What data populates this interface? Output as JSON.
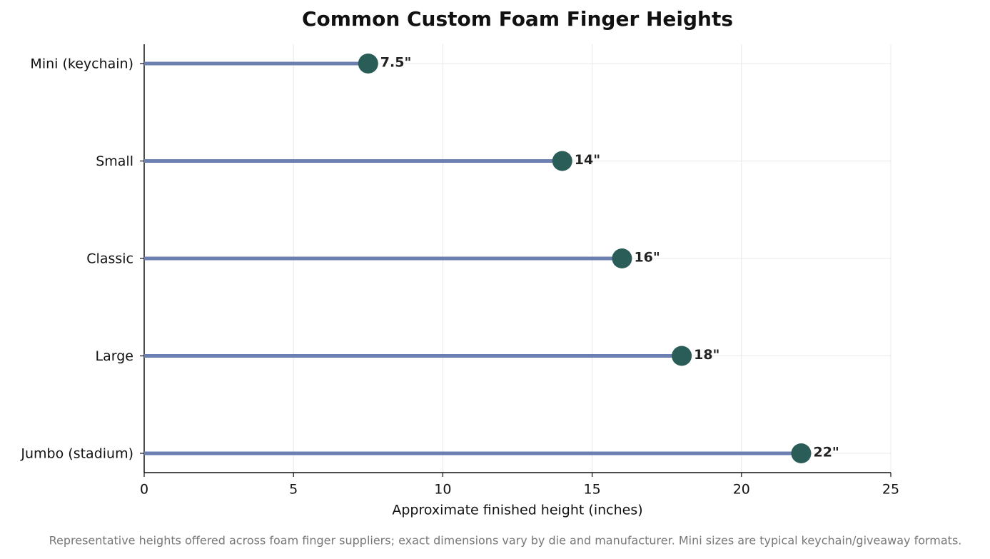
{
  "chart_data": {
    "type": "lollipop",
    "orientation": "horizontal",
    "title": "Common Custom Foam Finger Heights",
    "x_label": "Approximate finished height (inches)",
    "note": "Representative heights offered across foam finger suppliers; exact dimensions vary by die and manufacturer. Mini sizes are typical keychain/giveaway formats.",
    "categories": [
      "Mini (keychain)",
      "Small",
      "Classic",
      "Large",
      "Jumbo (stadium)"
    ],
    "values": [
      7.5,
      14,
      16,
      18,
      22
    ],
    "value_labels": [
      "7.5\"",
      "14\"",
      "16\"",
      "18\"",
      "22\""
    ],
    "stem_color": "#6b7fb0",
    "color": "#2a5c58",
    "xlim": [
      0,
      25
    ],
    "xticks": [
      0,
      5,
      10,
      15,
      20,
      25
    ],
    "grid": true
  }
}
